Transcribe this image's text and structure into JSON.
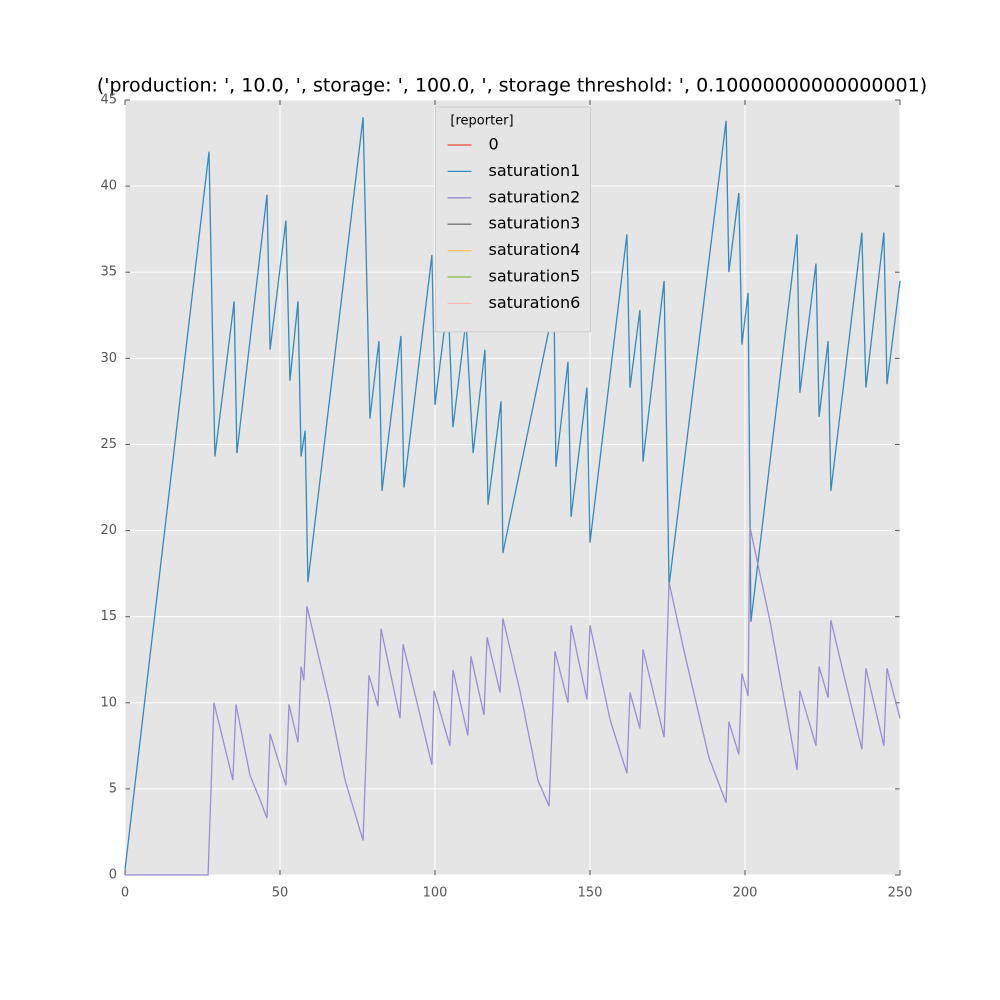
{
  "chart_data": {
    "type": "line",
    "title": "('production: ', 10.0, ', storage: ', 100.0, ', storage threshold: ', 0.10000000000000001)",
    "legend_title": "[reporter]",
    "legend_loc": "upper center",
    "grid": true,
    "background": "#e5e5e5",
    "xlim": [
      0,
      250
    ],
    "xticks": [
      0,
      50,
      100,
      150,
      200,
      250
    ],
    "ylim": [
      0,
      45
    ],
    "yticks": [
      0,
      5,
      10,
      15,
      20,
      25,
      30,
      35,
      40,
      45
    ],
    "series": [
      {
        "name": "0",
        "color": "#e24a33",
        "x": [],
        "values": []
      },
      {
        "name": "saturation1",
        "color": "#348abd",
        "x": [
          0,
          27.1,
          29,
          35.2,
          36.1,
          45.8,
          46.8,
          51.9,
          53.2,
          55.8,
          56.8,
          58.1,
          59,
          76.8,
          79,
          81.9,
          82.9,
          89,
          90,
          99,
          100,
          104.2,
          105.8,
          110,
          112.3,
          116.1,
          117.1,
          121.3,
          121.9,
          138.4,
          139,
          142.9,
          143.9,
          149,
          150,
          161.9,
          162.9,
          166.1,
          167.1,
          173.9,
          175.5,
          193.9,
          194.8,
          198,
          199,
          201,
          201.9,
          216.8,
          217.7,
          222.9,
          223.9,
          226.8,
          227.7,
          237.7,
          239,
          244.8,
          245.8,
          250
        ],
        "values": [
          0.3,
          42,
          24.3,
          33.3,
          24.5,
          39.5,
          30.5,
          38,
          28.7,
          33.3,
          24.3,
          25.8,
          17,
          44,
          26.5,
          31,
          22.3,
          31.3,
          22.5,
          36,
          27.3,
          33.4,
          26,
          32.2,
          24.5,
          30.5,
          21.5,
          27.5,
          18.7,
          33.1,
          23.7,
          29.8,
          20.8,
          28.3,
          19.3,
          37.2,
          28.3,
          32.8,
          24,
          34.5,
          16.8,
          43.8,
          35,
          39.6,
          30.8,
          33.8,
          14.7,
          37.2,
          28,
          35.5,
          26.6,
          31,
          22.3,
          37.3,
          28.3,
          37.3,
          28.5,
          34.5
        ]
      },
      {
        "name": "saturation2",
        "color": "#988ed5",
        "x": [
          0,
          26.8,
          28.7,
          34.8,
          35.8,
          40.3,
          43.5,
          45.8,
          46.8,
          51.9,
          52.9,
          55.8,
          56.8,
          57.7,
          58.7,
          66.1,
          71,
          76.8,
          78.7,
          81.6,
          82.6,
          88.7,
          89.7,
          99,
          99.7,
          104.8,
          105.8,
          110.6,
          111.6,
          115.8,
          116.8,
          121,
          121.9,
          127.4,
          133.2,
          136.8,
          138.7,
          142.9,
          143.9,
          149,
          150,
          156.5,
          161.9,
          162.9,
          166.1,
          167.1,
          173.9,
          175.5,
          180.6,
          188.4,
          193.9,
          194.8,
          198,
          199,
          201,
          201.6,
          208,
          216.8,
          217.7,
          222.9,
          223.9,
          226.8,
          227.7,
          232.3,
          237.7,
          239,
          244.8,
          245.8,
          250
        ],
        "values": [
          0,
          0,
          10,
          5.5,
          9.9,
          5.8,
          4.4,
          3.3,
          8.2,
          5.2,
          9.9,
          7.7,
          12.1,
          11.3,
          15.6,
          9.9,
          5.5,
          2,
          11.6,
          9.8,
          14.3,
          9.1,
          13.4,
          6.4,
          10.7,
          7.5,
          11.9,
          8.1,
          12.7,
          9.3,
          13.8,
          10.6,
          14.9,
          10.7,
          5.5,
          4,
          13,
          10,
          14.5,
          10.2,
          14.5,
          9,
          5.9,
          10.6,
          8.5,
          13.1,
          8,
          17,
          12.8,
          6.8,
          4.2,
          8.9,
          7,
          11.7,
          10.4,
          20.2,
          14.8,
          6.1,
          10.7,
          7.5,
          12.1,
          10.3,
          14.8,
          11.3,
          7.3,
          12,
          7.5,
          12,
          9.1
        ]
      },
      {
        "name": "saturation3",
        "color": "#777777",
        "x": [],
        "values": []
      },
      {
        "name": "saturation4",
        "color": "#fbc15e",
        "x": [],
        "values": []
      },
      {
        "name": "saturation5",
        "color": "#8eba42",
        "x": [],
        "values": []
      },
      {
        "name": "saturation6",
        "color": "#ffb5b8",
        "x": [],
        "values": []
      }
    ]
  }
}
